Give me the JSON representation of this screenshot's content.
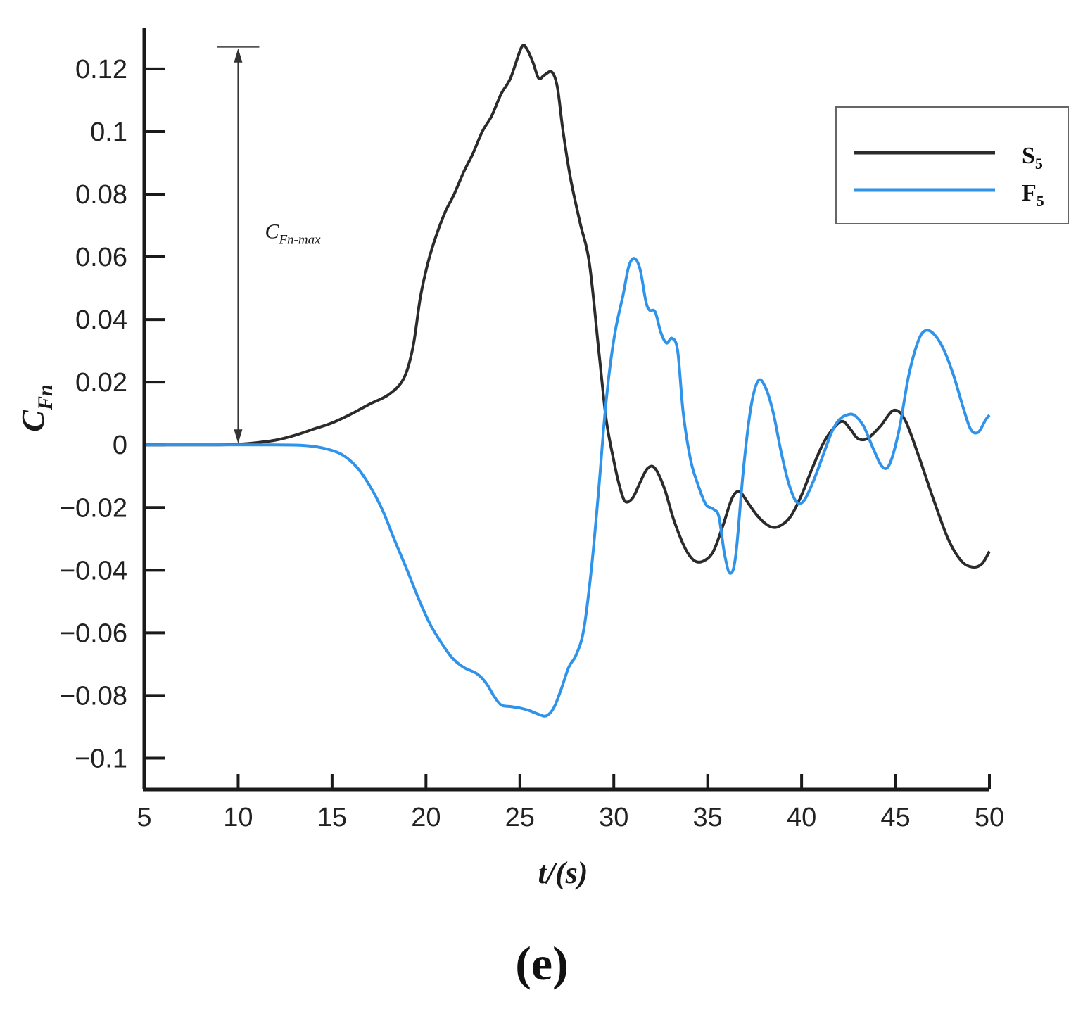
{
  "chart_data": {
    "type": "line",
    "xlabel": "t/(s)",
    "ylabel": {
      "main": "C",
      "sub": "Fn"
    },
    "xlim": [
      5,
      50
    ],
    "ylim": [
      -0.11,
      0.133
    ],
    "xticks": [
      5,
      10,
      15,
      20,
      25,
      30,
      35,
      40,
      45,
      50
    ],
    "xtick_labels": [
      "5",
      "10",
      "15",
      "20",
      "25",
      "30",
      "35",
      "40",
      "45",
      "50"
    ],
    "yticks": [
      -0.1,
      -0.08,
      -0.06,
      -0.04,
      -0.02,
      0,
      0.02,
      0.04,
      0.06,
      0.08,
      0.1,
      0.12
    ],
    "ytick_labels": [
      "−0.1",
      "−0.08",
      "−0.06",
      "−0.04",
      "−0.02",
      "0",
      "0.02",
      "0.04",
      "0.06",
      "0.08",
      "0.1",
      "0.12"
    ],
    "grid": false,
    "legend_position": "top-right",
    "series": [
      {
        "name": "S",
        "name_sub": "5",
        "color": "#2b2b2b",
        "points": [
          [
            5,
            0
          ],
          [
            9,
            0
          ],
          [
            10,
            0.0002
          ],
          [
            11,
            0.0007
          ],
          [
            12,
            0.0015
          ],
          [
            13,
            0.003
          ],
          [
            14,
            0.005
          ],
          [
            15,
            0.007
          ],
          [
            16,
            0.0098
          ],
          [
            17,
            0.013
          ],
          [
            18,
            0.016
          ],
          [
            18.8,
            0.021
          ],
          [
            19.3,
            0.031
          ],
          [
            19.7,
            0.047
          ],
          [
            20.1,
            0.058
          ],
          [
            20.5,
            0.066
          ],
          [
            21,
            0.074
          ],
          [
            21.5,
            0.08
          ],
          [
            22,
            0.087
          ],
          [
            22.5,
            0.093
          ],
          [
            23,
            0.1
          ],
          [
            23.5,
            0.105
          ],
          [
            24,
            0.112
          ],
          [
            24.5,
            0.117
          ],
          [
            25.1,
            0.127
          ],
          [
            25.4,
            0.126
          ],
          [
            25.7,
            0.122
          ],
          [
            26,
            0.117
          ],
          [
            26.3,
            0.118
          ],
          [
            26.7,
            0.119
          ],
          [
            27,
            0.114
          ],
          [
            27.3,
            0.1
          ],
          [
            27.7,
            0.085
          ],
          [
            28.2,
            0.071
          ],
          [
            28.7,
            0.058
          ],
          [
            29.2,
            0.03
          ],
          [
            29.6,
            0.008
          ],
          [
            30,
            -0.005
          ],
          [
            30.3,
            -0.013
          ],
          [
            30.6,
            -0.018
          ],
          [
            31,
            -0.017
          ],
          [
            31.4,
            -0.012
          ],
          [
            31.8,
            -0.0075
          ],
          [
            32.2,
            -0.0075
          ],
          [
            32.7,
            -0.014
          ],
          [
            33.2,
            -0.024
          ],
          [
            33.8,
            -0.033
          ],
          [
            34.3,
            -0.037
          ],
          [
            34.8,
            -0.037
          ],
          [
            35.3,
            -0.034
          ],
          [
            35.8,
            -0.026
          ],
          [
            36.3,
            -0.017
          ],
          [
            36.7,
            -0.015
          ],
          [
            37.2,
            -0.019
          ],
          [
            37.7,
            -0.023
          ],
          [
            38.3,
            -0.026
          ],
          [
            38.8,
            -0.026
          ],
          [
            39.4,
            -0.023
          ],
          [
            40,
            -0.016
          ],
          [
            40.6,
            -0.007
          ],
          [
            41.2,
            0.001
          ],
          [
            41.8,
            0.006
          ],
          [
            42.2,
            0.0075
          ],
          [
            42.6,
            0.005
          ],
          [
            43,
            0.002
          ],
          [
            43.5,
            0.002
          ],
          [
            44.2,
            0.006
          ],
          [
            44.9,
            0.011
          ],
          [
            45.5,
            0.008
          ],
          [
            46.2,
            -0.003
          ],
          [
            47,
            -0.017
          ],
          [
            47.8,
            -0.03
          ],
          [
            48.5,
            -0.037
          ],
          [
            49.1,
            -0.039
          ],
          [
            49.6,
            -0.038
          ],
          [
            50,
            -0.034
          ]
        ]
      },
      {
        "name": "F",
        "name_sub": "5",
        "color": "#2f93ea",
        "points": [
          [
            5,
            0
          ],
          [
            12,
            0
          ],
          [
            13.5,
            -0.0002
          ],
          [
            14.5,
            -0.001
          ],
          [
            15.5,
            -0.003
          ],
          [
            16.3,
            -0.007
          ],
          [
            17,
            -0.013
          ],
          [
            17.7,
            -0.021
          ],
          [
            18.3,
            -0.03
          ],
          [
            19,
            -0.04
          ],
          [
            19.6,
            -0.049
          ],
          [
            20.2,
            -0.057
          ],
          [
            20.8,
            -0.063
          ],
          [
            21.4,
            -0.068
          ],
          [
            22,
            -0.071
          ],
          [
            22.7,
            -0.073
          ],
          [
            23.2,
            -0.076
          ],
          [
            23.6,
            -0.08
          ],
          [
            24,
            -0.083
          ],
          [
            24.5,
            -0.0835
          ],
          [
            25,
            -0.084
          ],
          [
            25.5,
            -0.0848
          ],
          [
            26,
            -0.086
          ],
          [
            26.4,
            -0.0865
          ],
          [
            26.8,
            -0.084
          ],
          [
            27.2,
            -0.078
          ],
          [
            27.6,
            -0.071
          ],
          [
            28,
            -0.067
          ],
          [
            28.4,
            -0.059
          ],
          [
            28.8,
            -0.04
          ],
          [
            29.2,
            -0.014
          ],
          [
            29.5,
            0.008
          ],
          [
            29.8,
            0.025
          ],
          [
            30.1,
            0.037
          ],
          [
            30.5,
            0.048
          ],
          [
            30.8,
            0.057
          ],
          [
            31.1,
            0.0595
          ],
          [
            31.4,
            0.056
          ],
          [
            31.7,
            0.046
          ],
          [
            31.9,
            0.043
          ],
          [
            32.2,
            0.0425
          ],
          [
            32.5,
            0.036
          ],
          [
            32.8,
            0.0325
          ],
          [
            33.1,
            0.034
          ],
          [
            33.4,
            0.03
          ],
          [
            33.7,
            0.01
          ],
          [
            34.1,
            -0.005
          ],
          [
            34.5,
            -0.013
          ],
          [
            34.9,
            -0.019
          ],
          [
            35.3,
            -0.0205
          ],
          [
            35.6,
            -0.023
          ],
          [
            35.9,
            -0.035
          ],
          [
            36.2,
            -0.041
          ],
          [
            36.5,
            -0.035
          ],
          [
            36.9,
            -0.008
          ],
          [
            37.3,
            0.012
          ],
          [
            37.7,
            0.0205
          ],
          [
            38.1,
            0.018
          ],
          [
            38.5,
            0.01
          ],
          [
            38.9,
            -0.002
          ],
          [
            39.3,
            -0.012
          ],
          [
            39.7,
            -0.018
          ],
          [
            40.1,
            -0.018
          ],
          [
            40.6,
            -0.012
          ],
          [
            41.1,
            -0.004
          ],
          [
            41.6,
            0.004
          ],
          [
            42,
            0.008
          ],
          [
            42.4,
            0.0095
          ],
          [
            42.8,
            0.0095
          ],
          [
            43.3,
            0.006
          ],
          [
            43.8,
            -0.001
          ],
          [
            44.3,
            -0.007
          ],
          [
            44.7,
            -0.006
          ],
          [
            45.2,
            0.005
          ],
          [
            45.7,
            0.022
          ],
          [
            46.2,
            0.033
          ],
          [
            46.6,
            0.0365
          ],
          [
            47.1,
            0.035
          ],
          [
            47.6,
            0.03
          ],
          [
            48.1,
            0.022
          ],
          [
            48.6,
            0.012
          ],
          [
            49,
            0.005
          ],
          [
            49.4,
            0.004
          ],
          [
            49.8,
            0.008
          ],
          [
            50,
            0.0095
          ]
        ]
      }
    ],
    "annotation": {
      "label_main": "C",
      "label_sub": "Fn-max",
      "arrow_x": 10,
      "arrow_from": 0,
      "arrow_to": 0.127
    },
    "panel_label": "(e)"
  }
}
